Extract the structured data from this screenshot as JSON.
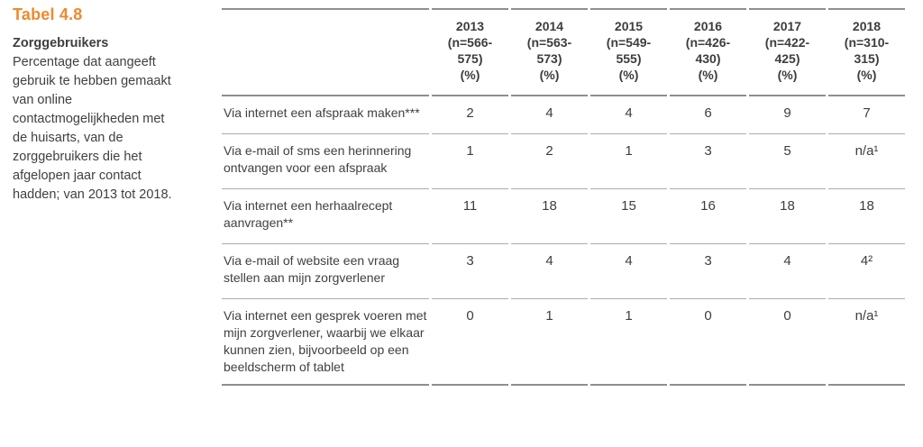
{
  "colors": {
    "accent_orange": "#EE8A2D",
    "text_gray": "#404040",
    "rule_dark": "#8F8F8F",
    "rule_light": "#ABABAB"
  },
  "sidebar": {
    "table_label": "Tabel 4.8",
    "subtitle": "Zorggebruikers",
    "description": "Percentage dat aangeeft gebruik te hebben gemaakt van online contactmogelijkheden met de huisarts, van de zorggebruikers die het afgelopen jaar contact hadden; van 2013 tot 2018."
  },
  "chart_data": {
    "type": "table",
    "title": "Tabel 4.8",
    "subtitle": "Zorggebruikers",
    "columns": [
      {
        "year": "2013",
        "n_line1": "(n=566-",
        "n_line2": "575)",
        "unit": "(%)"
      },
      {
        "year": "2014",
        "n_line1": "(n=563-",
        "n_line2": "573)",
        "unit": "(%)"
      },
      {
        "year": "2015",
        "n_line1": "(n=549-",
        "n_line2": "555)",
        "unit": "(%)"
      },
      {
        "year": "2016",
        "n_line1": "(n=426-",
        "n_line2": "430)",
        "unit": "(%)"
      },
      {
        "year": "2017",
        "n_line1": "(n=422-",
        "n_line2": "425)",
        "unit": "(%)"
      },
      {
        "year": "2018",
        "n_line1": "(n=310-",
        "n_line2": "315)",
        "unit": "(%)"
      }
    ],
    "rows": [
      {
        "label": "Via internet een afspraak maken***",
        "values": [
          "2",
          "4",
          "4",
          "6",
          "9",
          "7"
        ]
      },
      {
        "label": "Via e-mail of sms een herinnering ontvangen voor een afspraak",
        "values": [
          "1",
          "2",
          "1",
          "3",
          "5",
          "n/a¹"
        ]
      },
      {
        "label": "Via internet een herhaalrecept aanvragen**",
        "values": [
          "11",
          "18",
          "15",
          "16",
          "18",
          "18"
        ]
      },
      {
        "label": "Via e-mail of website een vraag stellen aan mijn zorgverlener",
        "values": [
          "3",
          "4",
          "4",
          "3",
          "4",
          "4²"
        ]
      },
      {
        "label": "Via internet een gesprek voeren met mijn zorgverlener, waarbij we elkaar kunnen zien, bijvoorbeeld op een beeldscherm of tablet",
        "values": [
          "0",
          "1",
          "1",
          "0",
          "0",
          "n/a¹"
        ]
      }
    ]
  }
}
